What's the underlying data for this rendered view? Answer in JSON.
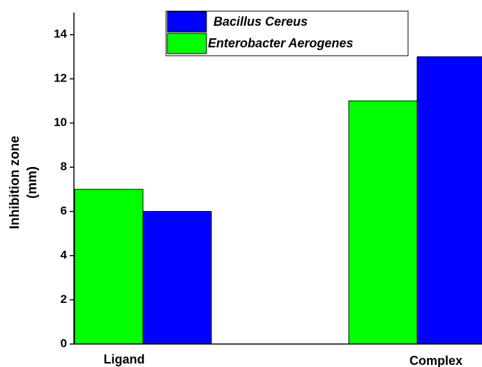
{
  "chart_data": {
    "type": "bar",
    "ylabel": [
      "Inhibition zone",
      "(mm)"
    ],
    "categories": [
      "Ligand",
      "Complex"
    ],
    "series": [
      {
        "name": "Enterobacter Aerogenes",
        "color": "#00ff00",
        "values": [
          7,
          11
        ]
      },
      {
        "name": "Bacillus Cereus",
        "color": "#0000ff",
        "values": [
          6,
          13
        ]
      }
    ],
    "legend_order": [
      "Bacillus Cereus",
      "Enterobacter Aerogenes"
    ],
    "ylim": [
      0,
      15
    ],
    "yticks": [
      0,
      2,
      4,
      6,
      8,
      10,
      12,
      14
    ],
    "grid": false
  }
}
